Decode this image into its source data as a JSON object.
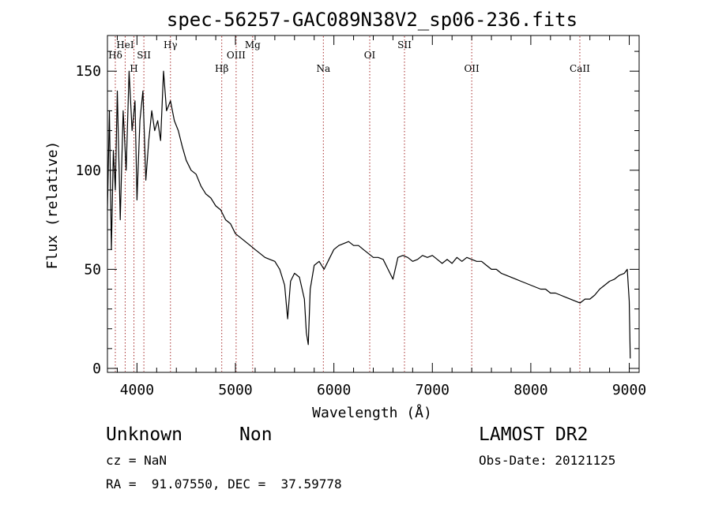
{
  "chart_data": {
    "type": "line",
    "title": "spec-56257-GAC089N38V2_sp06-236.fits",
    "xlabel": "Wavelength (Å)",
    "ylabel": "Flux (relative)",
    "xlim": [
      3700,
      9100
    ],
    "ylim": [
      -2,
      168
    ],
    "x_ticks": [
      4000,
      5000,
      6000,
      7000,
      8000,
      9000
    ],
    "x_tick_labels": [
      "4000",
      "5000",
      "6000",
      "7000",
      "8000",
      "9000"
    ],
    "y_ticks": [
      0,
      50,
      100,
      150
    ],
    "y_tick_labels": [
      "0",
      "50",
      "100",
      "150"
    ],
    "grid": false,
    "series": [
      {
        "x": [
          3700,
          3720,
          3740,
          3760,
          3780,
          3800,
          3830,
          3860,
          3890,
          3920,
          3950,
          3980,
          4000,
          4030,
          4060,
          4090,
          4120,
          4150,
          4180,
          4210,
          4240,
          4270,
          4300,
          4340,
          4380,
          4420,
          4460,
          4500,
          4550,
          4600,
          4650,
          4700,
          4750,
          4800,
          4850,
          4900,
          4950,
          5000,
          5050,
          5100,
          5150,
          5200,
          5250,
          5300,
          5350,
          5400,
          5450,
          5500,
          5530,
          5560,
          5600,
          5650,
          5700,
          5720,
          5740,
          5760,
          5800,
          5850,
          5900,
          5950,
          6000,
          6050,
          6100,
          6150,
          6200,
          6250,
          6300,
          6350,
          6400,
          6450,
          6500,
          6550,
          6600,
          6650,
          6700,
          6750,
          6800,
          6850,
          6900,
          6950,
          7000,
          7050,
          7100,
          7150,
          7200,
          7250,
          7300,
          7350,
          7400,
          7450,
          7500,
          7550,
          7600,
          7650,
          7700,
          7750,
          7800,
          7850,
          7900,
          7950,
          8000,
          8050,
          8100,
          8150,
          8200,
          8250,
          8300,
          8350,
          8400,
          8450,
          8500,
          8550,
          8600,
          8650,
          8700,
          8750,
          8800,
          8850,
          8900,
          8950,
          8980,
          9000,
          9010
        ],
        "y": [
          80,
          130,
          60,
          110,
          90,
          140,
          75,
          130,
          100,
          150,
          120,
          135,
          85,
          125,
          140,
          95,
          115,
          130,
          120,
          125,
          115,
          150,
          130,
          135,
          125,
          120,
          112,
          105,
          100,
          98,
          92,
          88,
          86,
          82,
          80,
          75,
          73,
          68,
          66,
          64,
          62,
          60,
          58,
          56,
          55,
          54,
          50,
          42,
          25,
          44,
          48,
          46,
          35,
          18,
          12,
          40,
          52,
          54,
          50,
          55,
          60,
          62,
          63,
          64,
          62,
          62,
          60,
          58,
          56,
          56,
          55,
          50,
          45,
          56,
          57,
          56,
          54,
          55,
          57,
          56,
          57,
          55,
          53,
          55,
          53,
          56,
          54,
          56,
          55,
          54,
          54,
          52,
          50,
          50,
          48,
          47,
          46,
          45,
          44,
          43,
          42,
          41,
          40,
          40,
          38,
          38,
          37,
          36,
          35,
          34,
          33,
          35,
          35,
          37,
          40,
          42,
          44,
          45,
          47,
          48,
          50,
          34,
          5
        ]
      }
    ],
    "annotations": [
      {
        "label": "Hδ",
        "x": 3780
      },
      {
        "label": "HeI",
        "x": 3880
      },
      {
        "label": "H",
        "x": 3969
      },
      {
        "label": "SII",
        "x": 4070
      },
      {
        "label": "Hγ",
        "x": 4340
      },
      {
        "label": "Hβ",
        "x": 4861
      },
      {
        "label": "OIII",
        "x": 5007
      },
      {
        "label": "Mg",
        "x": 5175
      },
      {
        "label": "Na",
        "x": 5893
      },
      {
        "label": "OI",
        "x": 6364
      },
      {
        "label": "SII",
        "x": 6717
      },
      {
        "label": "OII",
        "x": 7400
      },
      {
        "label": "CaII",
        "x": 8498
      }
    ]
  },
  "info": {
    "object_class": "Unknown",
    "object_subclass": "Non",
    "survey": "LAMOST DR2",
    "cz": "cz = NaN",
    "obs_date": "Obs-Date: 20121125",
    "coords": "RA =  91.07550, DEC =  37.59778"
  },
  "colors": {
    "line_marker": "#a52a2a",
    "spectrum": "#000000",
    "axes": "#000000"
  }
}
